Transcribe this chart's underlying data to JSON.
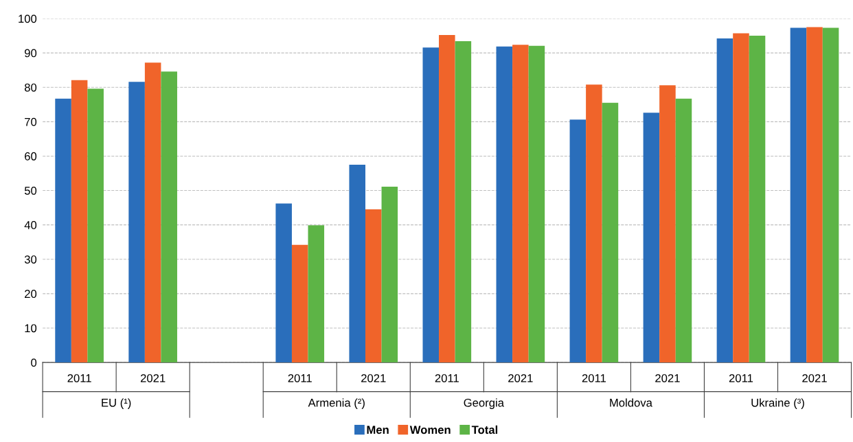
{
  "chart_data": {
    "type": "bar",
    "categories": [
      "2011",
      "2021",
      null,
      "2011",
      "2021",
      "2011",
      "2021",
      "2011",
      "2021",
      "2011",
      "2021"
    ],
    "series": [
      {
        "name": "Men",
        "color": "#2a6ebb",
        "values": [
          76.7,
          81.6,
          null,
          46.2,
          57.5,
          91.6,
          91.9,
          70.6,
          72.6,
          94.2,
          97.3
        ]
      },
      {
        "name": "Women",
        "color": "#f0642a",
        "values": [
          82.1,
          87.2,
          null,
          34.2,
          44.5,
          95.2,
          92.4,
          80.8,
          80.6,
          95.7,
          97.5
        ]
      },
      {
        "name": "Total",
        "color": "#5db446",
        "values": [
          79.6,
          84.6,
          null,
          39.9,
          51.1,
          93.4,
          92.1,
          75.5,
          76.7,
          95.0,
          97.3
        ]
      }
    ],
    "annotations": [
      "EU (¹)",
      "Armenia (²)",
      "Georgia",
      "Moldova",
      "Ukraine (³)"
    ],
    "ylim": [
      0,
      100
    ],
    "yticks": [
      0,
      10,
      20,
      30,
      40,
      50,
      60,
      70,
      80,
      90,
      100
    ],
    "grid": "y",
    "legend": "bottom"
  }
}
